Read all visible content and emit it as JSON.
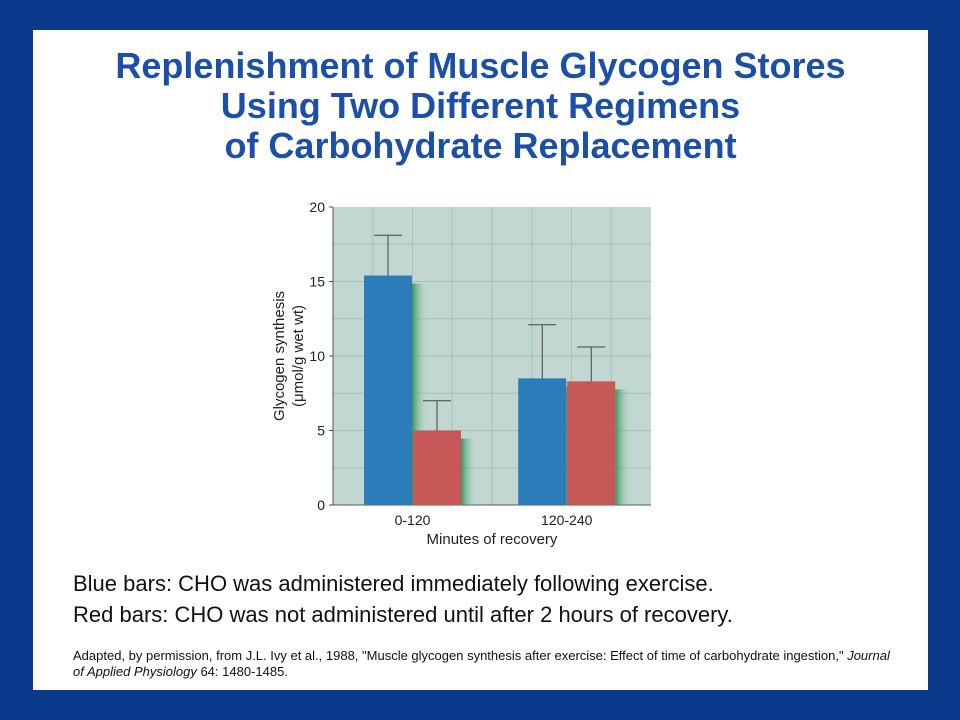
{
  "title": {
    "line1": "Replenishment of Muscle Glycogen Stores",
    "line2": "Using Two Different Regimens",
    "line3": "of Carbohydrate Replacement"
  },
  "colors": {
    "background": "#0b3a8c",
    "title": "#1c4fa8",
    "plot_bg": "#c2d7d1",
    "blue_bar": "#2b7cb8",
    "red_bar": "#c85858"
  },
  "chart_data": {
    "type": "bar",
    "categories": [
      "0-120",
      "120-240"
    ],
    "series": [
      {
        "values": [
          15.4,
          8.5
        ],
        "errors_upper": [
          18.1,
          12.1
        ],
        "color": "#2b7cb8"
      },
      {
        "values": [
          5.0,
          8.3
        ],
        "errors_upper": [
          7.0,
          10.6
        ],
        "color": "#c85858"
      }
    ],
    "xlabel": "Minutes of recovery",
    "ylabel_line1": "Glycogen synthesis",
    "ylabel_line2": "(μmol/g wet wt)",
    "ylim": [
      0,
      20
    ],
    "yticks": [
      "0",
      "5",
      "10",
      "15",
      "20"
    ],
    "grid": true
  },
  "caption": {
    "line1": "Blue bars: CHO was administered immediately following exercise.",
    "line2": "Red bars: CHO was not administered until after 2 hours of recovery."
  },
  "citation": {
    "part1": "Adapted, by permission, from J.L. Ivy et al., 1988, \"Muscle glycogen synthesis after exercise: Effect of time of carbohydrate ingestion,\" ",
    "journal": "Journal of Applied Physiology",
    "part2": " 64: 1480-1485."
  }
}
